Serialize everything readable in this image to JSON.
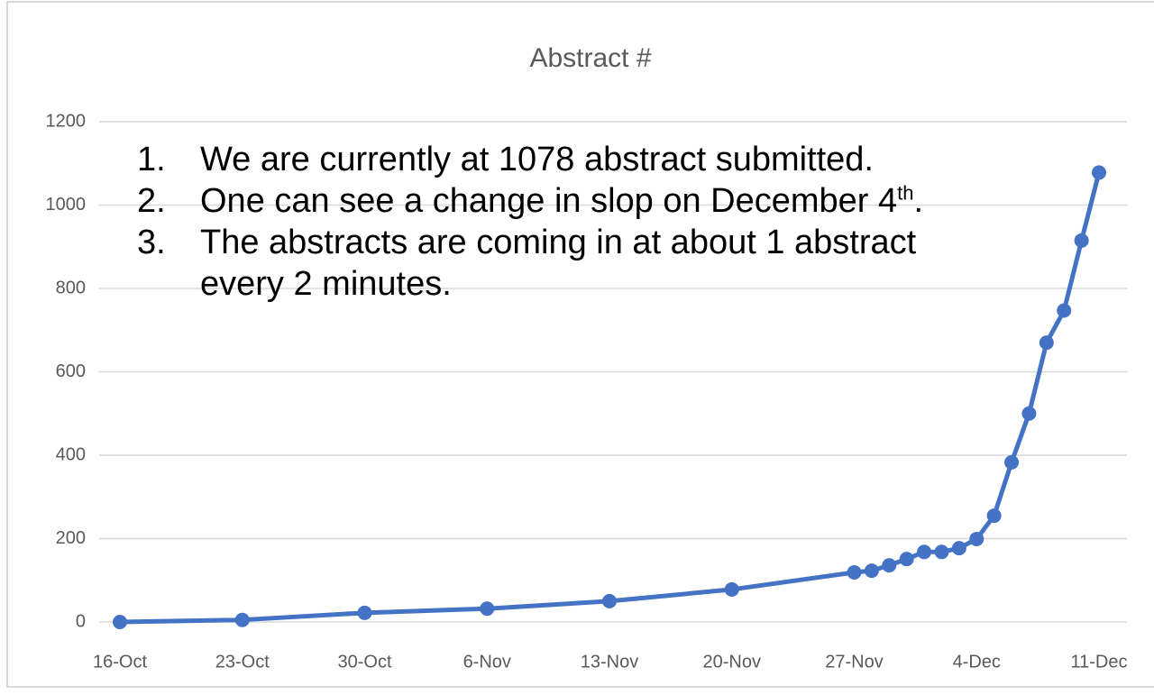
{
  "chart_data": {
    "type": "line",
    "title": "Abstract #",
    "x": [
      "16-Oct",
      "23-Oct",
      "30-Oct",
      "6-Nov",
      "13-Nov",
      "20-Nov",
      "27-Nov",
      "28-Nov",
      "29-Nov",
      "30-Nov",
      "1-Dec",
      "2-Dec",
      "3-Dec",
      "4-Dec",
      "5-Dec",
      "6-Dec",
      "7-Dec",
      "8-Dec",
      "9-Dec",
      "10-Dec",
      "11-Dec"
    ],
    "series": [
      {
        "name": "Abstract #",
        "color": "#4472c4",
        "values": [
          0,
          5,
          22,
          32,
          50,
          78,
          119,
          123,
          136,
          151,
          168,
          168,
          177,
          199,
          255,
          383,
          500,
          670,
          747,
          915,
          1078
        ]
      }
    ],
    "xlim": [
      "16-Oct",
      "11-Dec"
    ],
    "xticks": [
      "16-Oct",
      "23-Oct",
      "30-Oct",
      "6-Nov",
      "13-Nov",
      "20-Nov",
      "27-Nov",
      "4-Dec",
      "11-Dec"
    ],
    "ylim": [
      0,
      1200
    ],
    "yticks": [
      0,
      200,
      400,
      600,
      800,
      1000,
      1200
    ],
    "grid": true,
    "annotations": [
      {
        "marker": "1.",
        "text": "We are currently at 1078 abstract submitted."
      },
      {
        "marker": "2.",
        "text": "One can see a change in slop on December 4",
        "sup": "th",
        "tail": "."
      },
      {
        "marker": "3.",
        "text": "The abstracts are coming in at about 1 abstract every 2 minutes."
      }
    ]
  }
}
